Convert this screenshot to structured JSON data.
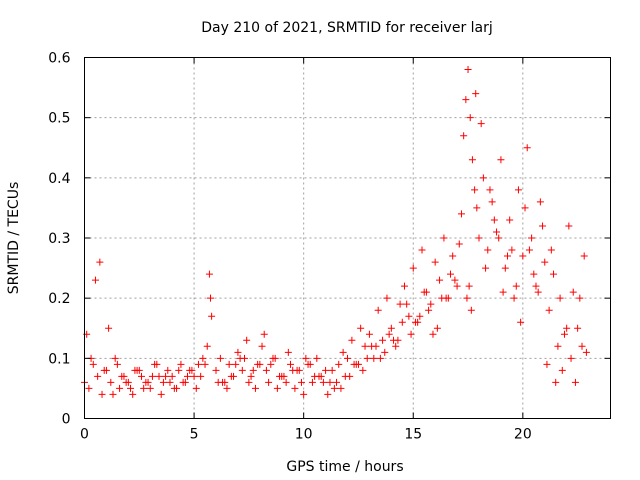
{
  "chart_data": {
    "type": "scatter",
    "title": "Day 210 of 2021, SRMTID for receiver larj",
    "xlabel": "GPS time / hours",
    "ylabel": "SRMTID / TECUs",
    "xlim": [
      0,
      24
    ],
    "ylim": [
      0,
      0.6
    ],
    "xticks": [
      0,
      5,
      10,
      15,
      20
    ],
    "yticks": [
      0,
      0.1,
      0.2,
      0.3,
      0.4,
      0.5,
      0.6
    ],
    "grid": true,
    "marker": "+",
    "color": "#ff0000",
    "series": [
      {
        "name": "SRMTID",
        "x": [
          0.0,
          0.2,
          0.4,
          0.6,
          0.8,
          1.0,
          1.2,
          1.4,
          1.6,
          1.8,
          2.0,
          2.2,
          2.4,
          2.6,
          2.8,
          3.0,
          3.2,
          3.4,
          3.6,
          3.8,
          4.0,
          4.2,
          4.4,
          4.6,
          4.8,
          5.0,
          5.2,
          5.4,
          5.6,
          5.7,
          5.75,
          5.8,
          6.0,
          6.2,
          6.4,
          6.6,
          6.8,
          7.0,
          7.2,
          7.4,
          7.6,
          7.8,
          8.0,
          8.2,
          8.4,
          8.6,
          8.8,
          9.0,
          9.2,
          9.4,
          9.6,
          9.8,
          10.0,
          10.2,
          10.4,
          10.6,
          10.8,
          11.0,
          11.2,
          11.4,
          11.6,
          11.8,
          12.0,
          12.2,
          12.4,
          12.6,
          12.8,
          13.0,
          13.2,
          13.4,
          13.6,
          13.8,
          14.0,
          14.2,
          14.4,
          14.6,
          14.8,
          15.0,
          15.2,
          15.4,
          15.6,
          15.8,
          16.0,
          16.2,
          16.4,
          16.6,
          16.8,
          17.0,
          17.2,
          17.3,
          17.4,
          17.5,
          17.6,
          17.7,
          17.8,
          18.0,
          18.2,
          18.4,
          18.6,
          18.8,
          19.0,
          19.2,
          19.4,
          19.6,
          19.8,
          20.0,
          20.2,
          20.4,
          20.6,
          20.8,
          21.0,
          21.2,
          21.4,
          21.6,
          21.8,
          22.0,
          22.2,
          22.4,
          22.6,
          22.8,
          0.1,
          0.5,
          0.9,
          1.3,
          1.7,
          2.1,
          2.5,
          2.9,
          3.3,
          3.7,
          4.1,
          4.5,
          4.9,
          5.3,
          6.1,
          6.5,
          6.9,
          7.3,
          7.7,
          8.1,
          8.5,
          8.9,
          9.3,
          9.7,
          10.1,
          10.5,
          10.9,
          11.3,
          11.7,
          12.1,
          12.5,
          12.9,
          13.3,
          13.7,
          14.1,
          14.5,
          14.9,
          15.3,
          15.7,
          16.1,
          16.5,
          16.9,
          17.45,
          17.55,
          17.65,
          17.85,
          18.1,
          18.5,
          18.9,
          19.3,
          19.7,
          20.1,
          20.5,
          20.9,
          21.3,
          21.7,
          22.1,
          22.5,
          22.9,
          0.3,
          0.7,
          1.1,
          1.5,
          1.9,
          2.3,
          2.7,
          3.1,
          3.5,
          3.9,
          4.3,
          4.7,
          5.1,
          5.5,
          6.3,
          6.7,
          7.1,
          7.5,
          7.9,
          8.3,
          8.7,
          9.1,
          9.5,
          9.9,
          10.3,
          10.7,
          11.1,
          11.5,
          11.9,
          12.3,
          12.7,
          13.1,
          13.5,
          13.9,
          14.3,
          14.7,
          15.1,
          15.5,
          15.9,
          16.3,
          16.7,
          17.1,
          17.9,
          18.3,
          18.7,
          19.1,
          19.5,
          19.9,
          20.3,
          20.7,
          21.1,
          21.5,
          21.9,
          22.3,
          22.7
        ],
        "y": [
          0.06,
          0.05,
          0.09,
          0.07,
          0.04,
          0.08,
          0.06,
          0.1,
          0.05,
          0.07,
          0.06,
          0.04,
          0.08,
          0.07,
          0.06,
          0.05,
          0.09,
          0.07,
          0.06,
          0.08,
          0.07,
          0.05,
          0.09,
          0.06,
          0.08,
          0.07,
          0.09,
          0.1,
          0.12,
          0.24,
          0.2,
          0.17,
          0.08,
          0.1,
          0.06,
          0.09,
          0.07,
          0.11,
          0.08,
          0.13,
          0.07,
          0.05,
          0.09,
          0.14,
          0.06,
          0.1,
          0.05,
          0.07,
          0.06,
          0.09,
          0.05,
          0.08,
          0.04,
          0.09,
          0.06,
          0.1,
          0.07,
          0.08,
          0.06,
          0.05,
          0.09,
          0.11,
          0.1,
          0.13,
          0.09,
          0.15,
          0.12,
          0.14,
          0.1,
          0.18,
          0.13,
          0.2,
          0.15,
          0.12,
          0.19,
          0.22,
          0.17,
          0.25,
          0.16,
          0.28,
          0.21,
          0.19,
          0.26,
          0.23,
          0.3,
          0.2,
          0.27,
          0.22,
          0.34,
          0.47,
          0.53,
          0.58,
          0.5,
          0.43,
          0.38,
          0.3,
          0.4,
          0.28,
          0.36,
          0.31,
          0.43,
          0.25,
          0.33,
          0.2,
          0.38,
          0.27,
          0.45,
          0.3,
          0.22,
          0.36,
          0.26,
          0.18,
          0.24,
          0.12,
          0.08,
          0.15,
          0.1,
          0.06,
          0.2,
          0.27,
          0.14,
          0.23,
          0.08,
          0.04,
          0.07,
          0.05,
          0.08,
          0.06,
          0.09,
          0.07,
          0.05,
          0.06,
          0.08,
          0.07,
          0.06,
          0.05,
          0.09,
          0.1,
          0.08,
          0.12,
          0.09,
          0.07,
          0.11,
          0.08,
          0.1,
          0.07,
          0.06,
          0.08,
          0.05,
          0.07,
          0.09,
          0.1,
          0.12,
          0.11,
          0.13,
          0.16,
          0.14,
          0.17,
          0.18,
          0.15,
          0.2,
          0.23,
          0.2,
          0.22,
          0.18,
          0.54,
          0.49,
          0.38,
          0.3,
          0.27,
          0.22,
          0.35,
          0.24,
          0.32,
          0.28,
          0.2,
          0.32,
          0.15,
          0.11,
          0.1,
          0.26,
          0.15,
          0.09,
          0.06,
          0.08,
          0.05,
          0.07,
          0.04,
          0.06,
          0.08,
          0.07,
          0.05,
          0.09,
          0.06,
          0.07,
          0.1,
          0.06,
          0.09,
          0.08,
          0.1,
          0.07,
          0.08,
          0.06,
          0.09,
          0.07,
          0.04,
          0.06,
          0.07,
          0.09,
          0.08,
          0.12,
          0.1,
          0.14,
          0.13,
          0.19,
          0.16,
          0.21,
          0.14,
          0.2,
          0.24,
          0.29,
          0.35,
          0.25,
          0.33,
          0.21,
          0.28,
          0.16,
          0.28,
          0.21,
          0.09,
          0.06,
          0.14,
          0.21,
          0.12
        ]
      }
    ]
  }
}
